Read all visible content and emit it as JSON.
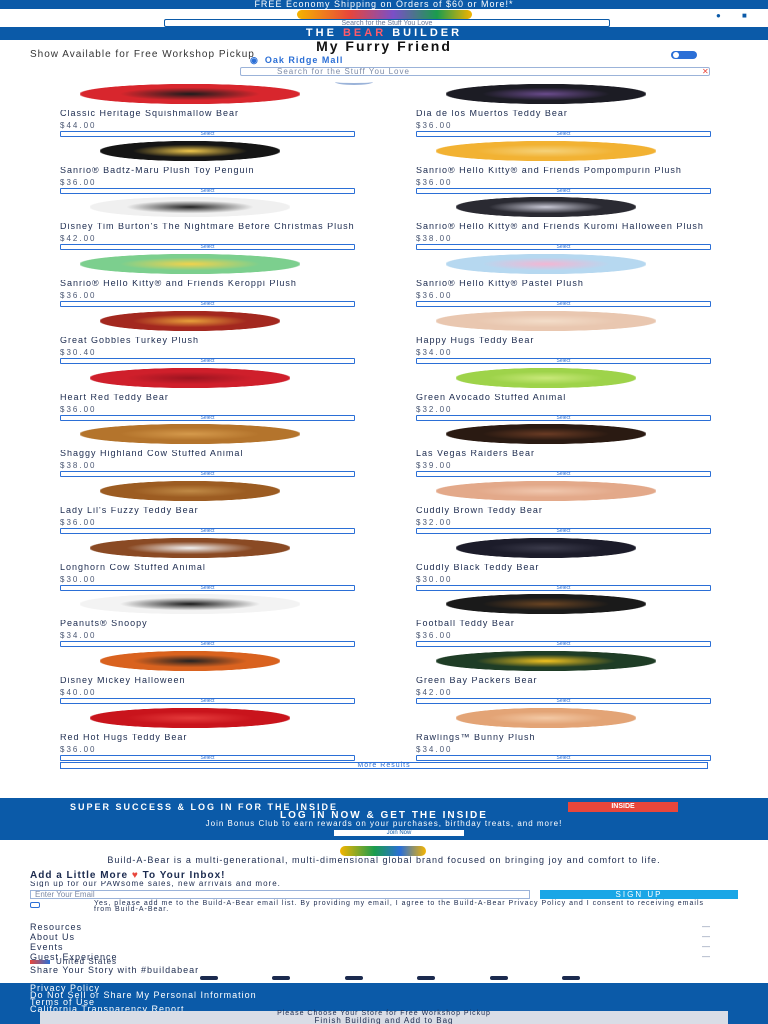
{
  "promo": {
    "text": "FREE Economy Shipping on Orders of $60 or More!*"
  },
  "header": {
    "logo_icon": "build-a-bear-logo",
    "search_placeholder": "Search for the Stuff You Love",
    "account_icon": "user-icon",
    "cart_icon": "bag-icon"
  },
  "brand": {
    "text_left": "THE ",
    "text_red": "BEAR",
    "text_right": " BUILDER"
  },
  "page": {
    "title": "My Furry Friend",
    "filter_label": "Show Available for Free Workshop Pickup",
    "location": "Oak Ridge Mall",
    "search_placeholder": "Search for the Stuff You Love",
    "load_more": "More Results"
  },
  "products": [
    {
      "name": "Classic Heritage Squishmallow Bear",
      "price": "$44.00",
      "select": "Select",
      "color": "#d8262d",
      "accent": "#1c1c1c"
    },
    {
      "name": "Dia de los Muertos Teddy Bear",
      "price": "$36.00",
      "select": "Select",
      "color": "#1c1c24",
      "accent": "#6a4b8c"
    },
    {
      "name": "Sanrio® Badtz-Maru Plush Toy Penguin",
      "price": "$36.00",
      "select": "Select",
      "color": "#151515",
      "accent": "#f2c94c"
    },
    {
      "name": "Sanrio® Hello Kitty® and Friends Pompompurin Plush",
      "price": "$36.00",
      "select": "Select",
      "color": "#f2b233",
      "accent": "#f5d27a"
    },
    {
      "name": "Disney Tim Burton's The Nightmare Before Christmas Plush",
      "price": "$42.00",
      "select": "Select",
      "color": "#f0f0f0",
      "accent": "#222222"
    },
    {
      "name": "Sanrio® Hello Kitty® and Friends Kuromi Halloween Plush",
      "price": "$38.00",
      "select": "Select",
      "color": "#2a2a32",
      "accent": "#c9c9d6"
    },
    {
      "name": "Sanrio® Hello Kitty® and Friends Keroppi Plush",
      "price": "$36.00",
      "select": "Select",
      "color": "#7ccf8e",
      "accent": "#f2d24c"
    },
    {
      "name": "Sanrio® Hello Kitty® Pastel Plush",
      "price": "$36.00",
      "select": "Select",
      "color": "#b6d8f0",
      "accent": "#f3b6d3"
    },
    {
      "name": "Great Gobbles Turkey Plush",
      "price": "$30.40",
      "select": "Select",
      "color": "#a3281f",
      "accent": "#e8a13a"
    },
    {
      "name": "Happy Hugs Teddy Bear",
      "price": "$34.00",
      "select": "Select",
      "color": "#e9c7b0",
      "accent": "#f3ddc9"
    },
    {
      "name": "Heart Red Teddy Bear",
      "price": "$36.00",
      "select": "Select",
      "color": "#cf1f2b",
      "accent": "#9c1420"
    },
    {
      "name": "Green Avocado Stuffed Animal",
      "price": "$32.00",
      "select": "Select",
      "color": "#9ed34a",
      "accent": "#c9e87a"
    },
    {
      "name": "Shaggy Highland Cow Stuffed Animal",
      "price": "$38.00",
      "select": "Select",
      "color": "#b4742c",
      "accent": "#d59a4c"
    },
    {
      "name": "Las Vegas Raiders Bear",
      "price": "$39.00",
      "select": "Select",
      "color": "#2a1a12",
      "accent": "#6a3b24"
    },
    {
      "name": "Lady Lil's Fuzzy Teddy Bear",
      "price": "$36.00",
      "select": "Select",
      "color": "#9c5c22",
      "accent": "#c08a46"
    },
    {
      "name": "Cuddly Brown Teddy Bear",
      "price": "$32.00",
      "select": "Select",
      "color": "#e3a98a",
      "accent": "#f0c7ae"
    },
    {
      "name": "Longhorn Cow Stuffed Animal",
      "price": "$30.00",
      "select": "Select",
      "color": "#8a4a24",
      "accent": "#f2f2f2"
    },
    {
      "name": "Cuddly Black Teddy Bear",
      "price": "$30.00",
      "select": "Select",
      "color": "#1c1c2a",
      "accent": "#3a3a4a"
    },
    {
      "name": "Peanuts® Snoopy",
      "price": "$34.00",
      "select": "Select",
      "color": "#f3f3f3",
      "accent": "#1a1a1a"
    },
    {
      "name": "Football Teddy Bear",
      "price": "$36.00",
      "select": "Select",
      "color": "#1a1a1a",
      "accent": "#6a4422"
    },
    {
      "name": "Disney Mickey Halloween",
      "price": "$40.00",
      "select": "Select",
      "color": "#d9621f",
      "accent": "#222222"
    },
    {
      "name": "Green Bay Packers Bear",
      "price": "$42.00",
      "select": "Select",
      "color": "#1f3d26",
      "accent": "#f2c21f"
    },
    {
      "name": "Red Hot Hugs Teddy Bear",
      "price": "$36.00",
      "select": "Select",
      "color": "#c9141c",
      "accent": "#e43a3a"
    },
    {
      "name": "Rawlings™ Bunny Plush",
      "price": "$34.00",
      "select": "Select",
      "color": "#e3a476",
      "accent": "#f3c9a5"
    }
  ],
  "signup": {
    "headline": "SUPER SUCCESS & LOG IN FOR THE INSIDE",
    "badge": "INSIDE",
    "sub": "LOG IN NOW & GET THE INSIDE",
    "body": "Join Bonus Club to earn rewards on your purchases, birthday treats, and more!",
    "button": "Join Now"
  },
  "footer": {
    "logo_icon": "build-a-bear-footer-logo",
    "about": "Build-A-Bear is a multi-generational, multi-dimensional global brand focused on bringing joy and comfort to life.",
    "email_heading_before": "Add a Little More ",
    "email_heading_after": " To Your Inbox!",
    "email_desc": "Sign up for our PAWsome sales, new arrivals and more.",
    "email_placeholder": "Enter Your Email",
    "signup_button": "SIGN UP",
    "consent": "Yes, please add me to the Build-A-Bear email list. By providing my email, I agree to the Build-A-Bear Privacy Policy and I consent to receiving emails from Build-A-Bear.",
    "nav": [
      {
        "label": "Resources"
      },
      {
        "label": "About Us"
      },
      {
        "label": "Events"
      },
      {
        "label": "Guest Experience"
      }
    ],
    "country": "United States",
    "share": "Share Your Story with #buildabear",
    "social_icons": [
      "facebook-icon",
      "instagram-icon",
      "pinterest-icon",
      "twitter-icon",
      "youtube-icon",
      "tiktok-icon"
    ]
  },
  "legal": {
    "links": [
      "Privacy Policy",
      "Do Not Sell or Share My Personal Information",
      "Terms of Use",
      "California Transparency Report"
    ],
    "sticky_line1": "Please Choose Your Store for Free Workshop Pickup",
    "sticky_line2": "Finish Building and Add to Bag"
  }
}
